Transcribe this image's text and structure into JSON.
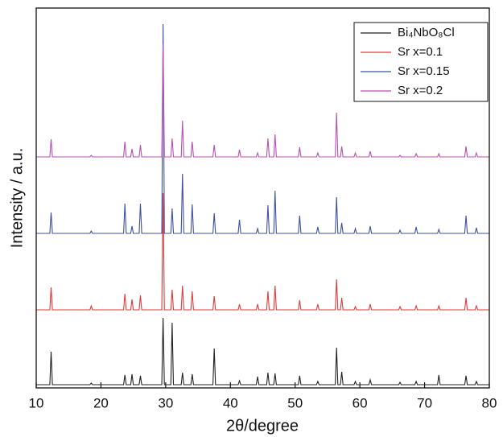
{
  "chart_data": {
    "type": "line",
    "x_label": "2θ/degree",
    "y_label": "Intensity / a.u.",
    "x": [
      10,
      12.1,
      12.3,
      12.5,
      18.3,
      18.5,
      18.7,
      23.5,
      23.7,
      23.9,
      24.6,
      24.8,
      25.0,
      25.9,
      26.1,
      26.3,
      29.4,
      29.6,
      29.8,
      30.8,
      31.0,
      31.2,
      32.4,
      32.6,
      32.8,
      33.9,
      34.1,
      34.3,
      37.3,
      37.5,
      37.7,
      41.2,
      41.4,
      41.6,
      44.0,
      44.2,
      44.4,
      45.6,
      45.8,
      46.0,
      46.7,
      46.9,
      47.1,
      50.5,
      50.7,
      50.9,
      53.3,
      53.5,
      53.7,
      56.2,
      56.4,
      56.6,
      57.0,
      57.2,
      57.4,
      59.1,
      59.3,
      59.5,
      61.4,
      61.6,
      61.8,
      66.0,
      66.2,
      66.4,
      68.5,
      68.7,
      68.9,
      72.0,
      72.2,
      72.4,
      76.2,
      76.4,
      76.6,
      77.8,
      78.0,
      78.2,
      80
    ],
    "series": [
      {
        "name": "Bi₄NbO₈Cl",
        "color": "#222222",
        "values": [
          4,
          4,
          45,
          4,
          4,
          6,
          4,
          4,
          16,
          4,
          4,
          17,
          4,
          4,
          15,
          4,
          4,
          87,
          4,
          4,
          81,
          4,
          4,
          19,
          4,
          4,
          17,
          4,
          4,
          49,
          4,
          4,
          9,
          4,
          4,
          14,
          4,
          4,
          19,
          4,
          4,
          18,
          4,
          4,
          15,
          4,
          4,
          8,
          4,
          4,
          50,
          4,
          4,
          20,
          4,
          4,
          8,
          4,
          4,
          10,
          4,
          4,
          7,
          4,
          4,
          8,
          4,
          4,
          16,
          4,
          4,
          15,
          4,
          4,
          8,
          4,
          4
        ]
      },
      {
        "name": "Sr x=0.1",
        "color": "#e0393b",
        "values": [
          97,
          97,
          125,
          97,
          97,
          102,
          97,
          97,
          117,
          97,
          97,
          110,
          97,
          97,
          115,
          97,
          97,
          242,
          97,
          97,
          122,
          97,
          97,
          127,
          97,
          97,
          120,
          97,
          97,
          114,
          97,
          97,
          104,
          97,
          97,
          104,
          97,
          97,
          120,
          97,
          97,
          127,
          97,
          97,
          109,
          97,
          97,
          104,
          97,
          97,
          135,
          97,
          97,
          112,
          97,
          97,
          101,
          97,
          97,
          104,
          97,
          97,
          101,
          97,
          97,
          102,
          97,
          97,
          102,
          97,
          97,
          112,
          97,
          97,
          102,
          97,
          97
        ]
      },
      {
        "name": "Sr x=0.15",
        "color": "#3d4fa3",
        "values": [
          192,
          192,
          218,
          192,
          192,
          195,
          192,
          192,
          229,
          192,
          192,
          201,
          192,
          192,
          229,
          192,
          192,
          452,
          192,
          192,
          223,
          192,
          192,
          266,
          192,
          192,
          228,
          192,
          192,
          217,
          192,
          192,
          209,
          192,
          192,
          198,
          192,
          192,
          227,
          192,
          192,
          245,
          192,
          192,
          214,
          192,
          192,
          200,
          192,
          192,
          237,
          192,
          192,
          205,
          192,
          192,
          198,
          192,
          192,
          201,
          192,
          192,
          196,
          192,
          192,
          200,
          192,
          192,
          197,
          192,
          192,
          214,
          192,
          192,
          199,
          192,
          192
        ]
      },
      {
        "name": "Sr x=0.2",
        "color": "#b84fb5",
        "values": [
          287,
          287,
          309,
          287,
          287,
          289,
          287,
          287,
          306,
          287,
          287,
          297,
          287,
          287,
          302,
          287,
          287,
          427,
          287,
          287,
          310,
          287,
          287,
          332,
          287,
          287,
          306,
          287,
          287,
          302,
          287,
          287,
          296,
          287,
          287,
          292,
          287,
          287,
          310,
          287,
          287,
          315,
          287,
          287,
          299,
          287,
          287,
          292,
          287,
          287,
          342,
          287,
          287,
          300,
          287,
          287,
          292,
          287,
          287,
          294,
          287,
          287,
          289,
          287,
          287,
          291,
          287,
          287,
          291,
          287,
          287,
          300,
          287,
          287,
          292,
          287,
          287
        ]
      }
    ],
    "xlim": [
      10,
      80
    ],
    "xticks": [
      10,
      20,
      30,
      40,
      50,
      60,
      70,
      80
    ],
    "ylim": [
      0,
      472
    ],
    "legend": "upper right"
  }
}
